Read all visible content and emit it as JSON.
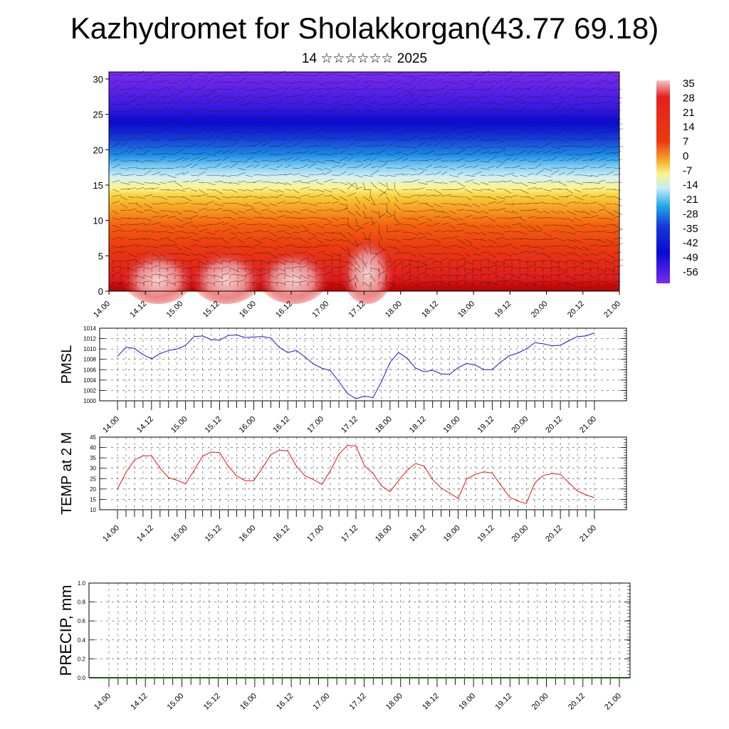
{
  "page": {
    "title": "Kazhydromet for Sholakkorgan(43.77 69.18)",
    "subtitle": "14 ☆☆☆☆☆☆ 2025"
  },
  "chart_data": [
    {
      "type": "heatmap",
      "name": "vertical-cross-section",
      "x_ticks": [
        "14.00",
        "14.12",
        "15.00",
        "15.12",
        "16.00",
        "16.12",
        "17.00",
        "17.12",
        "18.00",
        "18.12",
        "19.00",
        "19.12",
        "20.00",
        "20.12",
        "21.00"
      ],
      "y_ticks": [
        0,
        5,
        10,
        15,
        20,
        25,
        30
      ],
      "ylim": [
        0,
        31
      ],
      "colorbar_labels": [
        "35",
        "28",
        "21",
        "14",
        "7",
        "0",
        "-7",
        "-14",
        "-21",
        "-28",
        "-35",
        "-42",
        "-49",
        "-56"
      ],
      "overlay": "wind barbs"
    },
    {
      "type": "line",
      "ylabel": "PMSL",
      "ylim": [
        1000,
        1014
      ],
      "y_ticks": [
        1000,
        1002,
        1004,
        1006,
        1008,
        1010,
        1012,
        1014
      ],
      "x_ticks": [
        "14.00",
        "14.12",
        "15.00",
        "15.12",
        "16.00",
        "16.12",
        "17.00",
        "17.12",
        "18.00",
        "18.12",
        "19.00",
        "19.12",
        "20.00",
        "20.12",
        "21.00"
      ],
      "color": "#1515e0",
      "values": [
        1008.6,
        1010.3,
        1010.1,
        1008.9,
        1008.1,
        1009.1,
        1009.7,
        1010,
        1010.7,
        1012.4,
        1012.5,
        1011.8,
        1011.7,
        1012.6,
        1012.7,
        1012.2,
        1012.3,
        1012.4,
        1012.1,
        1010.3,
        1009.3,
        1009.7,
        1008.5,
        1007.1,
        1006.3,
        1005.8,
        1003.7,
        1001.4,
        1000.4,
        1000.9,
        1000.6,
        1003.7,
        1007.4,
        1009.3,
        1008.2,
        1006.3,
        1005.6,
        1005.9,
        1005.2,
        1005.1,
        1006.4,
        1007.2,
        1006.9,
        1006,
        1006,
        1007.5,
        1008.7,
        1009.2,
        1010,
        1011.2,
        1011,
        1010.6,
        1010.7,
        1011.6,
        1012.4,
        1012.5,
        1013.1
      ]
    },
    {
      "type": "line",
      "ylabel": "TEMP at 2 M",
      "ylim": [
        10,
        45
      ],
      "y_ticks": [
        10,
        15,
        20,
        25,
        30,
        35,
        40,
        45
      ],
      "x_ticks": [
        "14.00",
        "14.12",
        "15.00",
        "15.12",
        "16.00",
        "16.12",
        "17.00",
        "17.12",
        "18.00",
        "18.12",
        "19.00",
        "19.12",
        "20.00",
        "20.12",
        "21.00"
      ],
      "color": "#e01515",
      "values": [
        20,
        28,
        34,
        36,
        36,
        30,
        25.5,
        24.2,
        22.5,
        29,
        35.8,
        37.8,
        37.6,
        31,
        26.3,
        24,
        24,
        30,
        36.5,
        38.8,
        38.3,
        31,
        26.4,
        24.5,
        22.2,
        28.8,
        36.8,
        41,
        40.8,
        31.2,
        27.5,
        21.5,
        18.7,
        24,
        29,
        32.3,
        31,
        24.5,
        20.5,
        18,
        15.5,
        24.8,
        27,
        28.3,
        27.7,
        21.8,
        16.2,
        14.2,
        13,
        23,
        26.5,
        27.4,
        27.1,
        23,
        19,
        17.2,
        15.8
      ]
    },
    {
      "type": "bar",
      "ylabel": "PRECIP, mm",
      "ylim": [
        0,
        1
      ],
      "y_ticks": [
        "0.0",
        "0.2",
        "0.4",
        "0.6",
        "0.8",
        "1.0"
      ],
      "x_ticks": [
        "14.00",
        "14.12",
        "15.00",
        "15.12",
        "16.00",
        "16.12",
        "17.00",
        "17.12",
        "18.00",
        "18.12",
        "19.00",
        "19.12",
        "20.00",
        "20.12",
        "21.00"
      ],
      "values": [
        0
      ]
    }
  ]
}
